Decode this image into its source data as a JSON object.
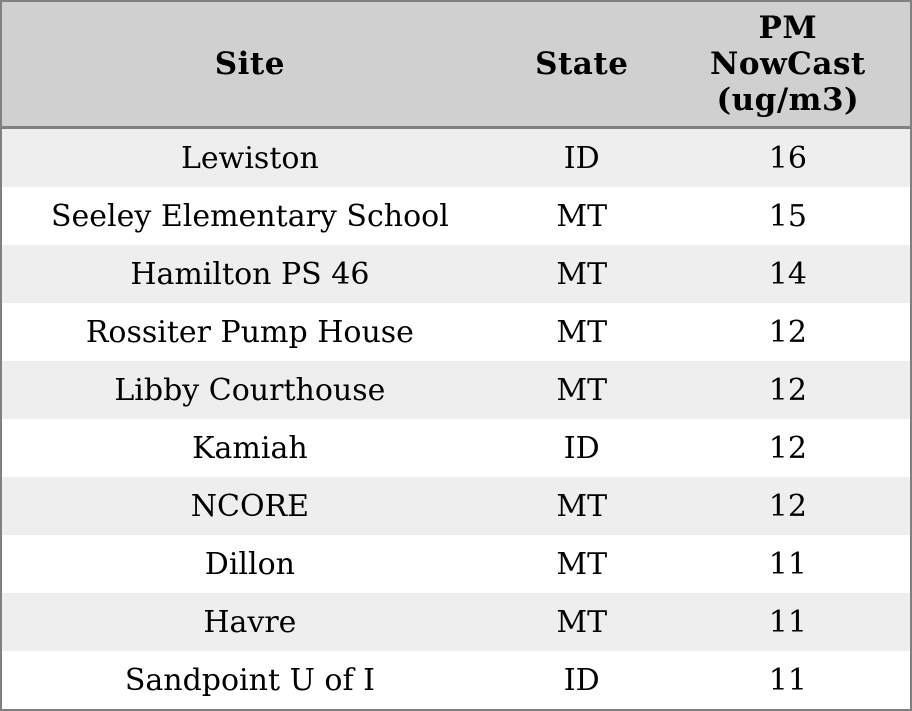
{
  "table": {
    "columns": [
      {
        "id": "site",
        "label": "Site"
      },
      {
        "id": "state",
        "label": "State"
      },
      {
        "id": "pm",
        "label": "PM\nNowCast\n(ug/m3)"
      }
    ],
    "rows": [
      {
        "site": "Lewiston",
        "state": "ID",
        "pm": "16"
      },
      {
        "site": "Seeley Elementary School",
        "state": "MT",
        "pm": "15"
      },
      {
        "site": "Hamilton PS 46",
        "state": "MT",
        "pm": "14"
      },
      {
        "site": "Rossiter Pump House",
        "state": "MT",
        "pm": "12"
      },
      {
        "site": "Libby Courthouse",
        "state": "MT",
        "pm": "12"
      },
      {
        "site": "Kamiah",
        "state": "ID",
        "pm": "12"
      },
      {
        "site": "NCORE",
        "state": "MT",
        "pm": "12"
      },
      {
        "site": "Dillon",
        "state": "MT",
        "pm": "11"
      },
      {
        "site": "Havre",
        "state": "MT",
        "pm": "11"
      },
      {
        "site": "Sandpoint U of I",
        "state": "ID",
        "pm": "11"
      }
    ]
  },
  "colors": {
    "header_bg": "#d0d0d0",
    "row_odd_bg": "#eeeeee",
    "row_even_bg": "#ffffff",
    "border": "#808080",
    "text": "#000000"
  },
  "chart_data": {
    "type": "table",
    "title": "",
    "columns": [
      "Site",
      "State",
      "PM NowCast (ug/m3)"
    ],
    "rows": [
      [
        "Lewiston",
        "ID",
        16
      ],
      [
        "Seeley Elementary School",
        "MT",
        15
      ],
      [
        "Hamilton PS 46",
        "MT",
        14
      ],
      [
        "Rossiter Pump House",
        "MT",
        12
      ],
      [
        "Libby Courthouse",
        "MT",
        12
      ],
      [
        "Kamiah",
        "ID",
        12
      ],
      [
        "NCORE",
        "MT",
        12
      ],
      [
        "Dillon",
        "MT",
        11
      ],
      [
        "Havre",
        "MT",
        11
      ],
      [
        "Sandpoint U of I",
        "ID",
        11
      ]
    ],
    "layout": {
      "header_background": "#d0d0d0",
      "row_stripe_colors": [
        "#eeeeee",
        "#ffffff"
      ],
      "grid": "outer-border-and-header-separator-only",
      "cell_alignment": "center"
    }
  }
}
